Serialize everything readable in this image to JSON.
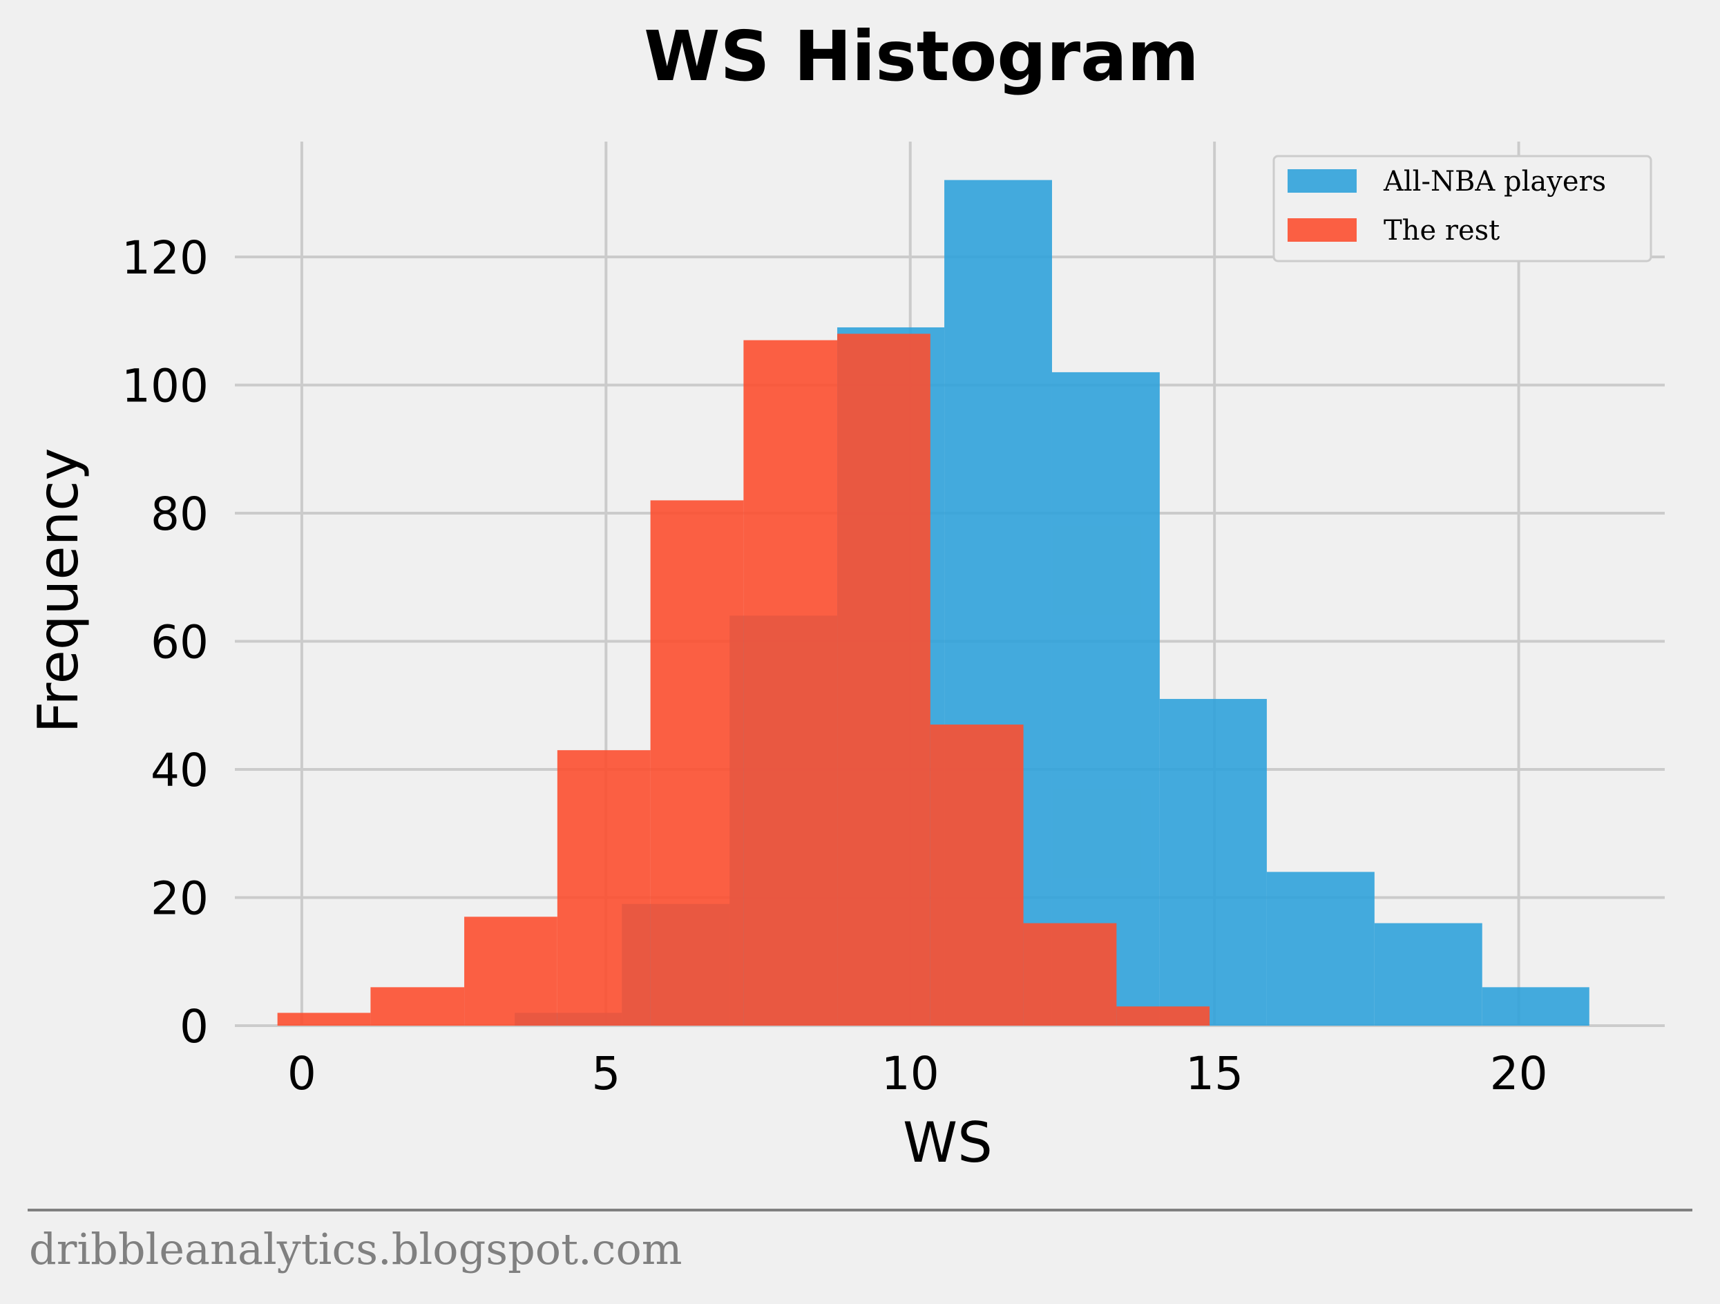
{
  "chart_data": {
    "type": "bar",
    "title": "WS Histogram",
    "xlabel": "WS",
    "ylabel": "Frequency",
    "xlim": [
      -1.1,
      22.4
    ],
    "ylim": [
      0,
      138
    ],
    "xticks": [
      0,
      5,
      10,
      15,
      20
    ],
    "yticks": [
      0,
      20,
      40,
      60,
      80,
      100,
      120
    ],
    "grid": true,
    "legend_position": "top-right",
    "series": [
      {
        "name": "All-NBA players",
        "color": "#30a2da",
        "bins": [
          {
            "x0": 3.5,
            "x1": 5.26,
            "value": 2
          },
          {
            "x0": 5.26,
            "x1": 7.03,
            "value": 19
          },
          {
            "x0": 7.03,
            "x1": 8.8,
            "value": 64
          },
          {
            "x0": 8.8,
            "x1": 10.56,
            "value": 109
          },
          {
            "x0": 10.56,
            "x1": 12.33,
            "value": 132
          },
          {
            "x0": 12.33,
            "x1": 14.1,
            "value": 102
          },
          {
            "x0": 14.1,
            "x1": 15.86,
            "value": 51
          },
          {
            "x0": 15.86,
            "x1": 17.63,
            "value": 24
          },
          {
            "x0": 17.63,
            "x1": 19.4,
            "value": 16
          },
          {
            "x0": 19.4,
            "x1": 21.16,
            "value": 6
          }
        ]
      },
      {
        "name": "The rest",
        "color": "#fc4f30",
        "bins": [
          {
            "x0": -0.4,
            "x1": 1.13,
            "value": 2
          },
          {
            "x0": 1.13,
            "x1": 2.67,
            "value": 6
          },
          {
            "x0": 2.67,
            "x1": 4.2,
            "value": 17
          },
          {
            "x0": 4.2,
            "x1": 5.73,
            "value": 43
          },
          {
            "x0": 5.73,
            "x1": 7.26,
            "value": 82
          },
          {
            "x0": 7.26,
            "x1": 8.8,
            "value": 107
          },
          {
            "x0": 8.8,
            "x1": 10.33,
            "value": 108
          },
          {
            "x0": 10.33,
            "x1": 11.86,
            "value": 47
          },
          {
            "x0": 11.86,
            "x1": 13.39,
            "value": 16
          },
          {
            "x0": 13.39,
            "x1": 14.92,
            "value": 3
          }
        ]
      }
    ]
  },
  "footer": {
    "text": "dribbleanalytics.blogspot.com"
  },
  "colors": {
    "background": "#f0f0f0",
    "grid": "#cbcbcb",
    "footer_line": "#808080",
    "footer_text": "#808080"
  }
}
